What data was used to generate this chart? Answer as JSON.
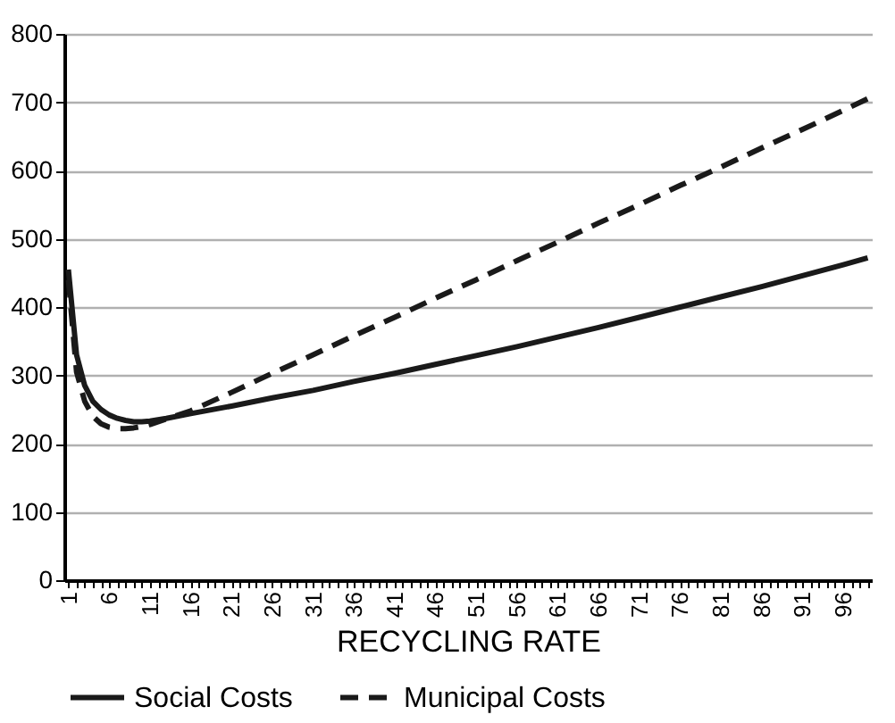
{
  "chart_data": {
    "type": "line",
    "xlabel": "RECYCLING RATE",
    "xlim": [
      0.5,
      99.5
    ],
    "ylim": [
      0,
      800
    ],
    "yticks": [
      0,
      100,
      200,
      300,
      400,
      500,
      600,
      700,
      800
    ],
    "xticks": [
      1,
      {
        "value": 2,
        "label": null
      },
      {
        "value": 3,
        "label": null
      },
      {
        "value": 4,
        "label": null
      },
      {
        "value": 5,
        "label": null
      },
      6,
      {
        "value": 7,
        "label": null
      },
      {
        "value": 8,
        "label": null
      },
      {
        "value": 9,
        "label": null
      },
      {
        "value": 10,
        "label": null
      },
      11,
      {
        "value": 12,
        "label": null
      },
      {
        "value": 13,
        "label": null
      },
      {
        "value": 14,
        "label": null
      },
      {
        "value": 15,
        "label": null
      },
      16,
      {
        "value": 17,
        "label": null
      },
      {
        "value": 18,
        "label": null
      },
      {
        "value": 19,
        "label": null
      },
      {
        "value": 20,
        "label": null
      },
      21,
      {
        "value": 22,
        "label": null
      },
      {
        "value": 23,
        "label": null
      },
      {
        "value": 24,
        "label": null
      },
      {
        "value": 25,
        "label": null
      },
      26,
      {
        "value": 27,
        "label": null
      },
      {
        "value": 28,
        "label": null
      },
      {
        "value": 29,
        "label": null
      },
      {
        "value": 30,
        "label": null
      },
      31,
      {
        "value": 32,
        "label": null
      },
      {
        "value": 33,
        "label": null
      },
      {
        "value": 34,
        "label": null
      },
      {
        "value": 35,
        "label": null
      },
      36,
      {
        "value": 37,
        "label": null
      },
      {
        "value": 38,
        "label": null
      },
      {
        "value": 39,
        "label": null
      },
      {
        "value": 40,
        "label": null
      },
      41,
      {
        "value": 42,
        "label": null
      },
      {
        "value": 43,
        "label": null
      },
      {
        "value": 44,
        "label": null
      },
      {
        "value": 45,
        "label": null
      },
      46,
      {
        "value": 47,
        "label": null
      },
      {
        "value": 48,
        "label": null
      },
      {
        "value": 49,
        "label": null
      },
      {
        "value": 50,
        "label": null
      },
      51,
      {
        "value": 52,
        "label": null
      },
      {
        "value": 53,
        "label": null
      },
      {
        "value": 54,
        "label": null
      },
      {
        "value": 55,
        "label": null
      },
      56,
      {
        "value": 57,
        "label": null
      },
      {
        "value": 58,
        "label": null
      },
      {
        "value": 59,
        "label": null
      },
      {
        "value": 60,
        "label": null
      },
      61,
      {
        "value": 62,
        "label": null
      },
      {
        "value": 63,
        "label": null
      },
      {
        "value": 64,
        "label": null
      },
      {
        "value": 65,
        "label": null
      },
      66,
      {
        "value": 67,
        "label": null
      },
      {
        "value": 68,
        "label": null
      },
      {
        "value": 69,
        "label": null
      },
      {
        "value": 70,
        "label": null
      },
      71,
      {
        "value": 72,
        "label": null
      },
      {
        "value": 73,
        "label": null
      },
      {
        "value": 74,
        "label": null
      },
      {
        "value": 75,
        "label": null
      },
      76,
      {
        "value": 77,
        "label": null
      },
      {
        "value": 78,
        "label": null
      },
      {
        "value": 79,
        "label": null
      },
      {
        "value": 80,
        "label": null
      },
      81,
      {
        "value": 82,
        "label": null
      },
      {
        "value": 83,
        "label": null
      },
      {
        "value": 84,
        "label": null
      },
      {
        "value": 85,
        "label": null
      },
      86,
      {
        "value": 87,
        "label": null
      },
      {
        "value": 88,
        "label": null
      },
      {
        "value": 89,
        "label": null
      },
      {
        "value": 90,
        "label": null
      },
      91,
      {
        "value": 92,
        "label": null
      },
      {
        "value": 93,
        "label": null
      },
      {
        "value": 94,
        "label": null
      },
      {
        "value": 95,
        "label": null
      },
      96,
      {
        "value": 97,
        "label": null
      },
      {
        "value": 98,
        "label": null
      },
      {
        "value": 99,
        "label": null
      }
    ],
    "x": [
      1,
      2,
      3,
      4,
      5,
      6,
      7,
      8,
      9,
      10,
      11,
      13,
      16,
      21,
      26,
      31,
      36,
      41,
      46,
      51,
      56,
      61,
      66,
      71,
      76,
      81,
      86,
      91,
      96,
      99
    ],
    "series": [
      {
        "name": "Social Costs",
        "color": "#1a1a1a",
        "line_style": "solid",
        "values": [
          455,
          330,
          285,
          262,
          250,
          242,
          237,
          234,
          232,
          232,
          233,
          237,
          244,
          255,
          267,
          278,
          291,
          303,
          316,
          329,
          342,
          356,
          370,
          385,
          400,
          415,
          430,
          446,
          462,
          472
        ]
      },
      {
        "name": "Municipal Costs",
        "color": "#1a1a1a",
        "line_style": "dashed",
        "values": [
          440,
          305,
          262,
          240,
          229,
          224,
          222,
          222,
          223,
          225,
          228,
          236,
          248,
          275,
          303,
          330,
          358,
          385,
          413,
          440,
          468,
          495,
          523,
          550,
          578,
          605,
          633,
          660,
          688,
          705
        ]
      }
    ],
    "grid": "y",
    "legend": "bottom",
    "marker": "none"
  }
}
